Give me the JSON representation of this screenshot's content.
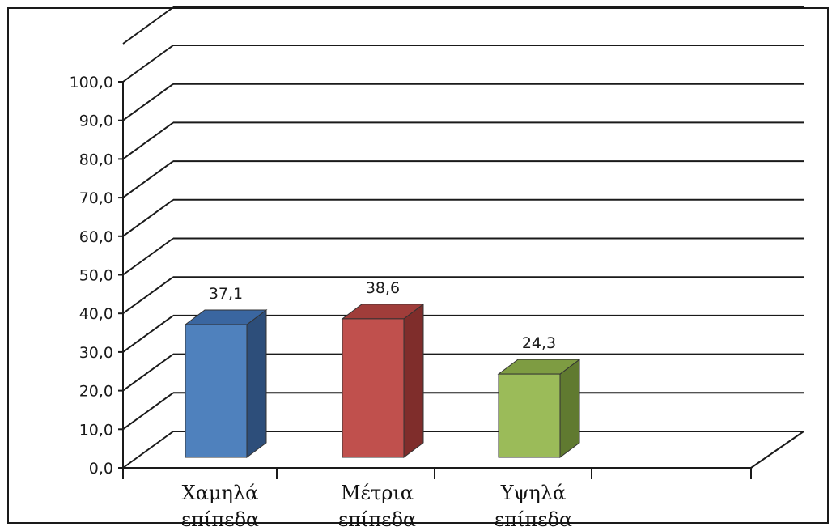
{
  "chart_data": {
    "type": "bar",
    "title": "",
    "xlabel": "",
    "ylabel": "",
    "categories": [
      [
        "Χαμηλά",
        "επίπεδα"
      ],
      [
        "Μέτρια",
        "επίπεδα"
      ],
      [
        "Υψηλά",
        "επίπεδα"
      ]
    ],
    "values": [
      37.1,
      38.6,
      24.3
    ],
    "data_labels": [
      "37,1",
      "38,6",
      "24,3"
    ],
    "ylim": [
      0,
      100
    ],
    "yticks": [
      0,
      10,
      20,
      30,
      40,
      50,
      60,
      70,
      80,
      90,
      100
    ],
    "ytick_labels": [
      "0,0",
      "10,0",
      "20,0",
      "30,0",
      "40,0",
      "50,0",
      "60,0",
      "70,0",
      "80,0",
      "90,0",
      "100,0"
    ],
    "grid": true,
    "style": "3d-column",
    "colors": {
      "bars": [
        {
          "front": "#4f81bd",
          "side": "#2d4e7a",
          "top": "#3a66a0"
        },
        {
          "front": "#c0504d",
          "side": "#7f2d2b",
          "top": "#a03d3a"
        },
        {
          "front": "#9bbb59",
          "side": "#607a30",
          "top": "#7e9c42"
        }
      ],
      "grid": "#1a1a1a"
    }
  }
}
